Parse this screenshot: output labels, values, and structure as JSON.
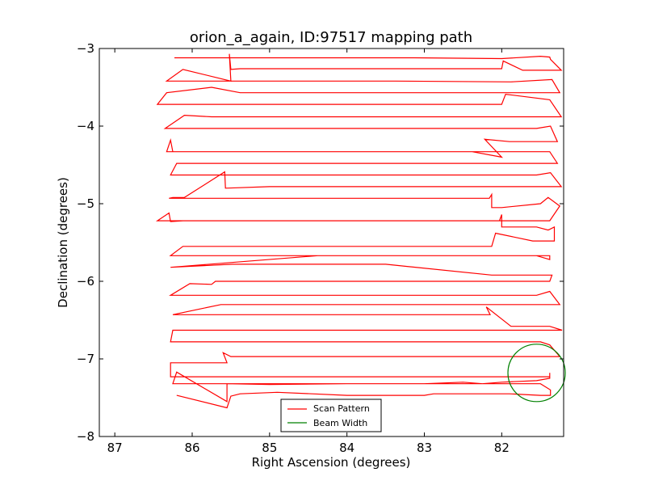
{
  "chart_data": {
    "type": "line",
    "title": "orion_a_again, ID:97517 mapping path",
    "xlabel": "Right Ascension (degrees)",
    "ylabel": "Declination (degrees)",
    "xlim": [
      87.2,
      81.2
    ],
    "ylim": [
      -8,
      -3
    ],
    "x_ticks": [
      87,
      86,
      85,
      84,
      83,
      82
    ],
    "y_ticks": [
      -3,
      -4,
      -5,
      -6,
      -7,
      -8
    ],
    "x_tick_labels": [
      "87",
      "86",
      "85",
      "84",
      "83",
      "82"
    ],
    "y_tick_labels": [
      "−3",
      "−4",
      "−5",
      "−6",
      "−7",
      "−8"
    ],
    "legend_position": "bottom-center",
    "series": [
      {
        "name": "Scan Pattern",
        "color": "#ff0000",
        "points": [
          [
            86.23,
            -3.12
          ],
          [
            85.62,
            -3.12
          ],
          [
            84.38,
            -3.12
          ],
          [
            83.13,
            -3.12
          ],
          [
            82.0,
            -3.13
          ],
          [
            81.5,
            -3.1
          ],
          [
            81.38,
            -3.11
          ],
          [
            81.37,
            -3.14
          ],
          [
            81.23,
            -3.28
          ],
          [
            81.73,
            -3.28
          ],
          [
            81.98,
            -3.16
          ],
          [
            82.0,
            -3.26
          ],
          [
            83.13,
            -3.26
          ],
          [
            85.38,
            -3.26
          ],
          [
            85.5,
            -3.27
          ],
          [
            85.52,
            -3.07
          ],
          [
            85.5,
            -3.42
          ],
          [
            86.12,
            -3.27
          ],
          [
            86.33,
            -3.42
          ],
          [
            86.25,
            -3.42
          ],
          [
            84.75,
            -3.42
          ],
          [
            83.38,
            -3.42
          ],
          [
            81.88,
            -3.43
          ],
          [
            81.35,
            -3.4
          ],
          [
            81.25,
            -3.57
          ],
          [
            81.5,
            -3.57
          ],
          [
            82.75,
            -3.57
          ],
          [
            84.63,
            -3.57
          ],
          [
            85.38,
            -3.57
          ],
          [
            85.75,
            -3.5
          ],
          [
            86.33,
            -3.57
          ],
          [
            86.45,
            -3.72
          ],
          [
            85.0,
            -3.72
          ],
          [
            83.5,
            -3.72
          ],
          [
            82.0,
            -3.72
          ],
          [
            81.95,
            -3.59
          ],
          [
            81.38,
            -3.66
          ],
          [
            81.23,
            -3.88
          ],
          [
            81.5,
            -3.88
          ],
          [
            82.75,
            -3.88
          ],
          [
            84.25,
            -3.88
          ],
          [
            85.38,
            -3.88
          ],
          [
            85.75,
            -3.88
          ],
          [
            86.1,
            -3.86
          ],
          [
            86.35,
            -4.03
          ],
          [
            85.45,
            -4.03
          ],
          [
            84.12,
            -4.03
          ],
          [
            82.88,
            -4.03
          ],
          [
            82.13,
            -4.03
          ],
          [
            81.55,
            -4.03
          ],
          [
            81.37,
            -4.0
          ],
          [
            81.28,
            -4.2
          ],
          [
            81.9,
            -4.2
          ],
          [
            82.22,
            -4.17
          ],
          [
            82.0,
            -4.4
          ],
          [
            82.38,
            -4.33
          ],
          [
            82.88,
            -4.33
          ],
          [
            84.38,
            -4.33
          ],
          [
            85.55,
            -4.33
          ],
          [
            86.0,
            -4.33
          ],
          [
            86.25,
            -4.33
          ],
          [
            86.28,
            -4.18
          ],
          [
            86.33,
            -4.33
          ],
          [
            86.25,
            -4.33
          ],
          [
            84.75,
            -4.33
          ],
          [
            83.5,
            -4.33
          ],
          [
            82.25,
            -4.33
          ],
          [
            81.38,
            -4.33
          ],
          [
            81.28,
            -4.48
          ],
          [
            82.0,
            -4.48
          ],
          [
            83.5,
            -4.48
          ],
          [
            84.88,
            -4.48
          ],
          [
            86.2,
            -4.48
          ],
          [
            86.28,
            -4.63
          ],
          [
            85.0,
            -4.63
          ],
          [
            83.38,
            -4.63
          ],
          [
            82.13,
            -4.63
          ],
          [
            81.55,
            -4.63
          ],
          [
            81.37,
            -4.6
          ],
          [
            81.23,
            -4.78
          ],
          [
            81.6,
            -4.78
          ],
          [
            82.38,
            -4.78
          ],
          [
            83.5,
            -4.78
          ],
          [
            85.0,
            -4.78
          ],
          [
            85.57,
            -4.8
          ],
          [
            85.58,
            -4.59
          ],
          [
            86.1,
            -4.92
          ],
          [
            86.25,
            -4.92
          ],
          [
            86.3,
            -4.93
          ],
          [
            85.0,
            -4.93
          ],
          [
            83.5,
            -4.93
          ],
          [
            82.16,
            -4.93
          ],
          [
            82.13,
            -4.88
          ],
          [
            82.13,
            -5.05
          ],
          [
            82.0,
            -5.05
          ],
          [
            81.5,
            -5.0
          ],
          [
            81.4,
            -4.92
          ],
          [
            81.25,
            -5.03
          ],
          [
            81.38,
            -5.22
          ],
          [
            82.38,
            -5.22
          ],
          [
            83.63,
            -5.22
          ],
          [
            84.75,
            -5.22
          ],
          [
            86.12,
            -5.22
          ],
          [
            86.28,
            -5.23
          ],
          [
            86.3,
            -5.12
          ],
          [
            86.45,
            -5.22
          ],
          [
            85.5,
            -5.22
          ],
          [
            84.0,
            -5.22
          ],
          [
            82.5,
            -5.22
          ],
          [
            82.03,
            -5.22
          ],
          [
            82.0,
            -5.14
          ],
          [
            82.0,
            -5.3
          ],
          [
            81.55,
            -5.3
          ],
          [
            81.4,
            -5.34
          ],
          [
            81.38,
            -5.33
          ],
          [
            81.32,
            -5.3
          ],
          [
            81.32,
            -5.48
          ],
          [
            81.6,
            -5.48
          ],
          [
            82.08,
            -5.38
          ],
          [
            82.13,
            -5.55
          ],
          [
            82.88,
            -5.55
          ],
          [
            84.25,
            -5.55
          ],
          [
            85.38,
            -5.55
          ],
          [
            86.12,
            -5.55
          ],
          [
            86.28,
            -5.67
          ],
          [
            85.5,
            -5.67
          ],
          [
            84.25,
            -5.67
          ],
          [
            83.25,
            -5.67
          ],
          [
            82.13,
            -5.67
          ],
          [
            81.55,
            -5.67
          ],
          [
            81.38,
            -5.72
          ],
          [
            81.38,
            -5.67
          ],
          [
            82.0,
            -5.67
          ],
          [
            83.25,
            -5.67
          ],
          [
            84.38,
            -5.67
          ],
          [
            86.28,
            -5.82
          ],
          [
            86.28,
            -5.82
          ],
          [
            85.48,
            -5.78
          ],
          [
            85.0,
            -5.78
          ],
          [
            83.5,
            -5.78
          ],
          [
            82.13,
            -5.92
          ],
          [
            81.35,
            -5.92
          ],
          [
            81.38,
            -6.0
          ],
          [
            81.55,
            -6.0
          ],
          [
            82.0,
            -6.0
          ],
          [
            83.5,
            -6.0
          ],
          [
            85.38,
            -6.0
          ],
          [
            85.7,
            -6.0
          ],
          [
            85.75,
            -6.04
          ],
          [
            86.03,
            -6.03
          ],
          [
            86.28,
            -6.18
          ],
          [
            85.5,
            -6.18
          ],
          [
            84.0,
            -6.18
          ],
          [
            82.88,
            -6.18
          ],
          [
            82.03,
            -6.18
          ],
          [
            81.55,
            -6.18
          ],
          [
            81.38,
            -6.13
          ],
          [
            81.25,
            -6.3
          ],
          [
            81.6,
            -6.3
          ],
          [
            82.13,
            -6.3
          ],
          [
            83.5,
            -6.3
          ],
          [
            85.0,
            -6.3
          ],
          [
            85.63,
            -6.3
          ],
          [
            86.25,
            -6.43
          ],
          [
            85.5,
            -6.43
          ],
          [
            84.0,
            -6.43
          ],
          [
            82.88,
            -6.43
          ],
          [
            82.15,
            -6.43
          ],
          [
            82.2,
            -6.33
          ],
          [
            81.88,
            -6.58
          ],
          [
            81.38,
            -6.58
          ],
          [
            81.22,
            -6.63
          ],
          [
            81.55,
            -6.63
          ],
          [
            82.13,
            -6.63
          ],
          [
            83.5,
            -6.63
          ],
          [
            85.0,
            -6.63
          ],
          [
            86.25,
            -6.63
          ],
          [
            86.28,
            -6.78
          ],
          [
            85.5,
            -6.78
          ],
          [
            84.0,
            -6.78
          ],
          [
            83.0,
            -6.78
          ],
          [
            82.13,
            -6.78
          ],
          [
            81.5,
            -6.78
          ],
          [
            81.38,
            -6.82
          ],
          [
            81.25,
            -6.97
          ],
          [
            81.5,
            -6.97
          ],
          [
            82.13,
            -6.97
          ],
          [
            83.5,
            -6.97
          ],
          [
            84.88,
            -6.97
          ],
          [
            85.5,
            -6.97
          ],
          [
            85.6,
            -6.92
          ],
          [
            85.55,
            -7.05
          ],
          [
            86.28,
            -7.05
          ],
          [
            86.28,
            -7.23
          ],
          [
            85.5,
            -7.23
          ],
          [
            84.0,
            -7.23
          ],
          [
            82.75,
            -7.23
          ],
          [
            82.13,
            -7.23
          ],
          [
            81.55,
            -7.23
          ],
          [
            81.38,
            -7.23
          ],
          [
            81.38,
            -7.18
          ],
          [
            81.38,
            -7.25
          ],
          [
            81.55,
            -7.28
          ],
          [
            82.0,
            -7.3
          ],
          [
            82.25,
            -7.32
          ],
          [
            82.5,
            -7.3
          ],
          [
            83.0,
            -7.32
          ],
          [
            84.0,
            -7.32
          ],
          [
            85.0,
            -7.33
          ],
          [
            85.55,
            -7.32
          ],
          [
            85.55,
            -7.55
          ],
          [
            86.2,
            -7.17
          ],
          [
            86.25,
            -7.32
          ],
          [
            86.0,
            -7.32
          ],
          [
            85.5,
            -7.32
          ],
          [
            84.5,
            -7.32
          ],
          [
            83.5,
            -7.32
          ],
          [
            82.88,
            -7.32
          ],
          [
            82.5,
            -7.32
          ],
          [
            81.5,
            -7.32
          ],
          [
            81.37,
            -7.4
          ],
          [
            81.37,
            -7.47
          ],
          [
            81.5,
            -7.47
          ],
          [
            81.9,
            -7.45
          ],
          [
            82.5,
            -7.45
          ],
          [
            82.88,
            -7.45
          ],
          [
            83.0,
            -7.47
          ],
          [
            84.0,
            -7.47
          ],
          [
            84.9,
            -7.43
          ],
          [
            85.38,
            -7.45
          ],
          [
            85.5,
            -7.48
          ],
          [
            85.55,
            -7.63
          ],
          [
            86.2,
            -7.47
          ]
        ]
      },
      {
        "name": "Beam Width",
        "color": "#008000",
        "shape": "circle",
        "center": [
          81.55,
          -7.18
        ],
        "radius_ra": 0.37,
        "radius_dec": 0.37
      }
    ]
  }
}
